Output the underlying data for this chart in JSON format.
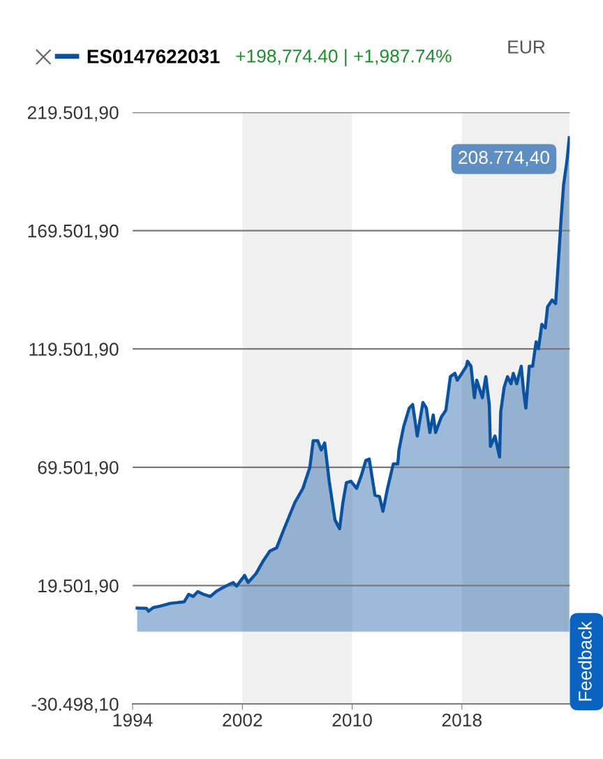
{
  "chart_data": {
    "type": "area",
    "x": [
      "1994-05",
      "1995-01",
      "1995-03",
      "1995-07",
      "1996-01",
      "1996-10",
      "1997-10",
      "1998-02",
      "1998-06",
      "1998-10",
      "1999-03",
      "1999-09",
      "2000-02",
      "2000-08",
      "2001-05",
      "2001-08",
      "2002-03",
      "2002-06",
      "2003-01",
      "2003-07",
      "2004-01",
      "2004-07",
      "2005-01",
      "2005-06",
      "2005-11",
      "2006-06",
      "2006-12",
      "2007-03",
      "2007-07",
      "2007-10",
      "2008-01",
      "2008-05",
      "2008-10",
      "2009-02",
      "2009-05",
      "2009-08",
      "2009-12",
      "2010-05",
      "2010-09",
      "2011-01",
      "2011-04",
      "2011-09",
      "2012-01",
      "2012-04",
      "2012-08",
      "2013-01",
      "2013-05",
      "2013-06",
      "2013-10",
      "2014-03",
      "2014-06",
      "2014-10",
      "2015-03",
      "2015-06",
      "2015-09",
      "2015-12",
      "2016-02",
      "2016-07",
      "2016-11",
      "2017-03",
      "2017-07",
      "2017-09",
      "2018-01",
      "2018-05",
      "2018-06",
      "2018-09",
      "2018-12",
      "2019-02",
      "2019-07",
      "2019-10",
      "2020-01",
      "2020-02",
      "2020-06",
      "2020-10",
      "2020-11",
      "2021-02",
      "2021-05",
      "2021-08",
      "2021-10",
      "2022-01",
      "2022-05",
      "2022-07",
      "2022-09",
      "2022-12",
      "2023-03",
      "2023-06",
      "2023-08",
      "2023-11",
      "2024-02",
      "2024-04",
      "2024-08",
      "2024-11",
      "2025-02",
      "2025-04",
      "2025-06",
      "2025-09",
      "2025-11"
    ],
    "series": [
      {
        "name": "ES0147622031",
        "color": "#0a52a0",
        "values": [
          10000,
          9900,
          8700,
          10200,
          10800,
          12000,
          12600,
          15800,
          14900,
          17000,
          15800,
          14900,
          17000,
          18700,
          20800,
          19300,
          23800,
          20800,
          24600,
          29700,
          34100,
          35500,
          42900,
          48800,
          54700,
          60600,
          69400,
          80700,
          80700,
          76800,
          79800,
          63600,
          47300,
          43500,
          54700,
          63000,
          63600,
          60600,
          65900,
          72400,
          73000,
          57700,
          57100,
          50900,
          60600,
          70900,
          70900,
          76800,
          86500,
          94500,
          96000,
          82700,
          96900,
          94500,
          84200,
          91600,
          84200,
          90700,
          93600,
          107800,
          109200,
          106300,
          109200,
          112200,
          114300,
          112200,
          98900,
          106300,
          98900,
          107800,
          96000,
          78300,
          82700,
          73900,
          93000,
          103400,
          107800,
          104800,
          109200,
          104800,
          112200,
          101900,
          94500,
          112200,
          112200,
          122500,
          119600,
          129900,
          128400,
          137300,
          140200,
          138700,
          160800,
          175600,
          188800,
          199200,
          208774.4
        ]
      }
    ],
    "xlim": [
      "1994-01-01",
      "2025-11-15"
    ],
    "xticks": [
      {
        "value": "1994-01-01",
        "label": "1994"
      },
      {
        "value": "2002-01-01",
        "label": "2002"
      },
      {
        "value": "2010-01-01",
        "label": "2010"
      },
      {
        "value": "2018-01-01",
        "label": "2018"
      }
    ],
    "ylim": [
      -30498.1,
      219501.9
    ],
    "yticks": [
      {
        "value": -30498.1,
        "label": "-30.498,10"
      },
      {
        "value": 19501.9,
        "label": "19.501,90"
      },
      {
        "value": 69501.9,
        "label": "69.501,90"
      },
      {
        "value": 119501.9,
        "label": "119.501,90"
      },
      {
        "value": 169501.9,
        "label": "169.501,90"
      },
      {
        "value": 219501.9,
        "label": "219.501,90"
      }
    ],
    "bands": [
      {
        "axis": "x",
        "from": "2002-01-01",
        "to": "2010-01-01",
        "color": "#f0f0f0"
      },
      {
        "axis": "x",
        "from": "2018-01-01",
        "to": "2025-11-15",
        "color": "#f0f0f0"
      }
    ],
    "grid": "y",
    "legend": "top left",
    "annotations": [
      "+198,774.40 | +1,987.74%",
      "EUR",
      "Feedback",
      {
        "text": "208.774,40",
        "x": "2025-11",
        "y": 208774.4
      }
    ]
  }
}
